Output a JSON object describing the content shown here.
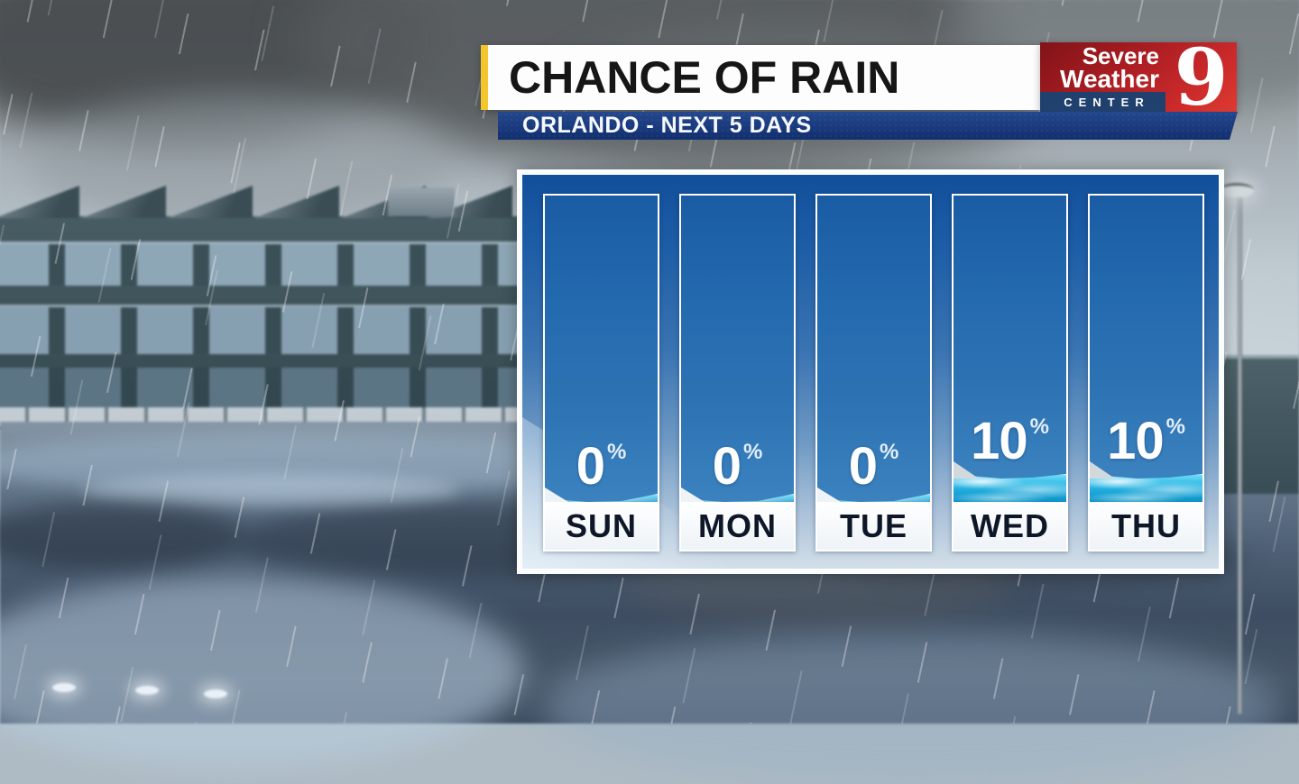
{
  "header": {
    "title": "CHANCE OF RAIN",
    "subtitle": "ORLANDO - NEXT 5 DAYS"
  },
  "logo": {
    "line1": "Severe",
    "line2": "Weather",
    "line3": "CENTER",
    "number": "9"
  },
  "chart_data": {
    "type": "bar",
    "title": "CHANCE OF RAIN",
    "subtitle": "ORLANDO - NEXT 5 DAYS",
    "categories": [
      "SUN",
      "MON",
      "TUE",
      "WED",
      "THU"
    ],
    "values": [
      0,
      0,
      0,
      10,
      10
    ],
    "unit": "%",
    "ylim": [
      0,
      100
    ],
    "legend": "none",
    "note": "cyan water fill at base of each column encodes chance of rain"
  },
  "days": [
    {
      "label": "SUN",
      "value": "0",
      "unit": "%",
      "chance": 0
    },
    {
      "label": "MON",
      "value": "0",
      "unit": "%",
      "chance": 0
    },
    {
      "label": "TUE",
      "value": "0",
      "unit": "%",
      "chance": 0
    },
    {
      "label": "WED",
      "value": "10",
      "unit": "%",
      "chance": 10
    },
    {
      "label": "THU",
      "value": "10",
      "unit": "%",
      "chance": 10
    }
  ],
  "colors": {
    "accent": "#f3c72c",
    "subtitle-bar": "#1a3a7e",
    "logo-red": "#c8262b",
    "logo-navy": "#20406e",
    "bar-blue": "#2e74b4",
    "water-cyan": "#2cb9e6",
    "panel-blue": "#1d5da6",
    "day-text": "#0e1728"
  }
}
